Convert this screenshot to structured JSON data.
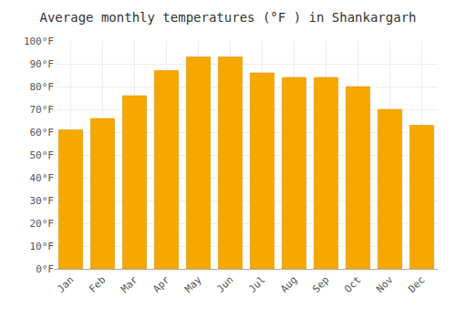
{
  "chart_data": {
    "type": "bar",
    "title": "Average monthly temperatures (°F ) in Shankargarh",
    "categories": [
      "Jan",
      "Feb",
      "Mar",
      "Apr",
      "May",
      "Jun",
      "Jul",
      "Aug",
      "Sep",
      "Oct",
      "Nov",
      "Dec"
    ],
    "values": [
      61,
      66,
      76,
      87,
      93,
      93,
      86,
      84,
      84,
      80,
      70,
      63
    ],
    "color": "#F5A800",
    "ylim": [
      0,
      100
    ],
    "yticks": [
      {
        "value": 0,
        "label": "0°F"
      },
      {
        "value": 10,
        "label": "10°F"
      },
      {
        "value": 20,
        "label": "20°F"
      },
      {
        "value": 30,
        "label": "30°F"
      },
      {
        "value": 40,
        "label": "40°F"
      },
      {
        "value": 50,
        "label": "50°F"
      },
      {
        "value": 60,
        "label": "60°F"
      },
      {
        "value": 70,
        "label": "70°F"
      },
      {
        "value": 80,
        "label": "80°F"
      },
      {
        "value": 90,
        "label": "90°F"
      },
      {
        "value": 100,
        "label": "100°F"
      }
    ],
    "grid": true
  }
}
